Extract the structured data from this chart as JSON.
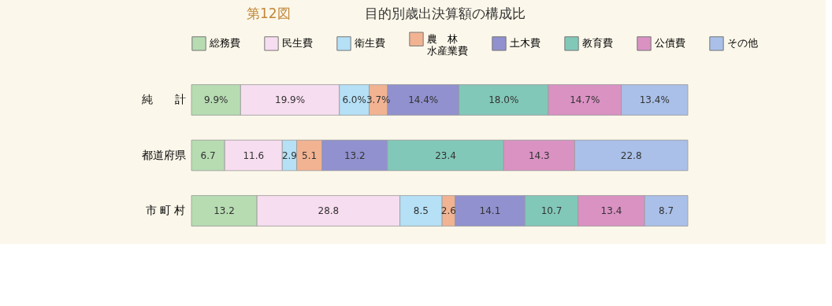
{
  "chart_data": {
    "type": "bar",
    "orientation": "horizontal",
    "stacked": true,
    "title": "目的別歳出決算額の構成比",
    "annotations": [
      "第12図"
    ],
    "legend": "top",
    "categories": [
      "純　　計",
      "都道府県",
      "市 町 村"
    ],
    "series": [
      {
        "name": "総務費",
        "color": "#b7dcb2",
        "values": [
          9.9,
          6.7,
          13.2
        ],
        "value_labels": [
          "9.9%",
          "6.7",
          "13.2"
        ]
      },
      {
        "name": "民生費",
        "color": "#f7ddf0",
        "values": [
          19.9,
          11.6,
          28.8
        ],
        "value_labels": [
          "19.9%",
          "11.6",
          "28.8"
        ]
      },
      {
        "name": "衛生費",
        "color": "#b5e0f6",
        "values": [
          6.0,
          2.9,
          8.5
        ],
        "value_labels": [
          "6.0%",
          "2.9",
          "8.5"
        ]
      },
      {
        "name": "農　林水産業費",
        "color": "#f2b392",
        "values": [
          3.7,
          5.1,
          2.6
        ],
        "value_labels": [
          "3.7%",
          "5.1",
          "2.6"
        ]
      },
      {
        "name": "土木費",
        "color": "#9191cf",
        "values": [
          14.4,
          13.2,
          14.1
        ],
        "value_labels": [
          "14.4%",
          "13.2",
          "14.1"
        ]
      },
      {
        "name": "教育費",
        "color": "#82c8b9",
        "values": [
          18.0,
          23.4,
          10.7
        ],
        "value_labels": [
          "18.0%",
          "23.4",
          "10.7"
        ]
      },
      {
        "name": "公債費",
        "color": "#da92c3",
        "values": [
          14.7,
          14.3,
          13.4
        ],
        "value_labels": [
          "14.7%",
          "14.3",
          "13.4"
        ]
      },
      {
        "name": "その他",
        "color": "#aac0e9",
        "values": [
          13.4,
          22.8,
          8.7
        ],
        "value_labels": [
          "13.4%",
          "22.8",
          "8.7"
        ]
      }
    ]
  }
}
